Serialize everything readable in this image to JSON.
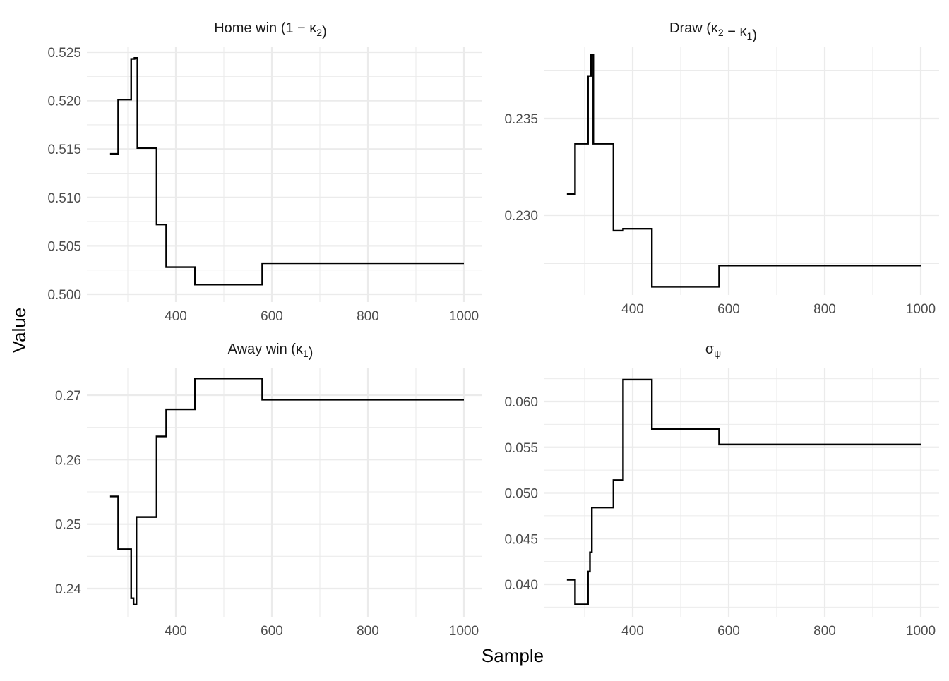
{
  "chart_data": {
    "type": "line",
    "layout": "facet_wrap 2x2, free y scales",
    "xlabel": "Sample",
    "ylabel": "Value",
    "grid": true,
    "legend": "none",
    "panels": [
      {
        "id": "home",
        "title": "Home win (1 − κ₂)",
        "title_parts": {
          "main": "Home win (1 − κ",
          "sub": "2",
          "tail": ")"
        },
        "step": true,
        "xlim": [
          245,
          1040
        ],
        "ylim": [
          0.4992,
          0.5255
        ],
        "x_ticks": [
          400,
          600,
          800,
          1000
        ],
        "x_minor": [
          300,
          500,
          700,
          900
        ],
        "y_ticks": [
          0.5,
          0.505,
          0.51,
          0.515,
          0.52,
          0.525
        ],
        "y_tick_labels": [
          "0.500",
          "0.505",
          "0.510",
          "0.515",
          "0.520",
          "0.525"
        ],
        "y_minor": [
          0.5025,
          0.5075,
          0.5125,
          0.5175,
          0.5225
        ],
        "x": [
          263,
          280,
          307,
          314,
          320,
          360,
          380,
          440,
          580,
          1000
        ],
        "values": [
          0.5145,
          0.5201,
          0.5243,
          0.5244,
          0.5151,
          0.5072,
          0.5028,
          0.501,
          0.5032,
          0.5032
        ]
      },
      {
        "id": "draw",
        "title": "Draw (κ₂ − κ₁)",
        "title_parts": {
          "main": "Draw (κ",
          "sub": "2",
          "mid": " − κ",
          "sub2": "1",
          "tail": ")"
        },
        "step": true,
        "xlim": [
          245,
          1040
        ],
        "ylim": [
          0.2258,
          0.2392
        ],
        "x_ticks": [
          400,
          600,
          800,
          1000
        ],
        "x_minor": [
          300,
          500,
          700,
          900
        ],
        "y_ticks": [
          0.23,
          0.235
        ],
        "y_tick_labels": [
          "0.230",
          "0.235"
        ],
        "y_minor": [
          0.2275,
          0.2325,
          0.2375
        ],
        "x": [
          263,
          280,
          307,
          313,
          318,
          360,
          380,
          440,
          580,
          1000
        ],
        "values": [
          0.2311,
          0.2337,
          0.2372,
          0.2383,
          0.2337,
          0.2292,
          0.2293,
          0.2263,
          0.2274,
          0.2274
        ]
      },
      {
        "id": "away",
        "title": "Away win (κ₁)",
        "title_parts": {
          "main": "Away win (κ",
          "sub": "1",
          "tail": ")"
        },
        "step": true,
        "xlim": [
          245,
          1040
        ],
        "ylim": [
          0.2358,
          0.2744
        ],
        "x_ticks": [
          400,
          600,
          800,
          1000
        ],
        "x_minor": [
          300,
          500,
          700,
          900
        ],
        "y_ticks": [
          0.24,
          0.25,
          0.26,
          0.27
        ],
        "y_tick_labels": [
          "0.24",
          "0.25",
          "0.26",
          "0.27"
        ],
        "y_minor": [
          0.245,
          0.255,
          0.265
        ],
        "x": [
          263,
          280,
          307,
          312,
          318,
          360,
          380,
          440,
          580,
          1000
        ],
        "values": [
          0.2543,
          0.2461,
          0.2385,
          0.2375,
          0.2511,
          0.2636,
          0.2678,
          0.2726,
          0.2693,
          0.2693
        ]
      },
      {
        "id": "sigma",
        "title": "σψ",
        "title_parts": {
          "main": "σ",
          "sub": "ψ",
          "tail": ""
        },
        "step": true,
        "xlim": [
          245,
          1040
        ],
        "ylim": [
          0.0364,
          0.0643
        ],
        "x_ticks": [
          400,
          600,
          800,
          1000
        ],
        "x_minor": [
          300,
          500,
          700,
          900
        ],
        "y_ticks": [
          0.04,
          0.045,
          0.05,
          0.055,
          0.06
        ],
        "y_tick_labels": [
          "0.040",
          "0.045",
          "0.050",
          "0.055",
          "0.060"
        ],
        "y_minor": [
          0.0375,
          0.0425,
          0.0475,
          0.0525,
          0.0575,
          0.0625
        ],
        "x": [
          263,
          280,
          307,
          311,
          315,
          360,
          380,
          440,
          580,
          1000
        ],
        "values": [
          0.0405,
          0.0378,
          0.0414,
          0.0435,
          0.0484,
          0.0514,
          0.0624,
          0.057,
          0.0553,
          0.0553
        ]
      }
    ]
  },
  "axes": {
    "xlabel": "Sample",
    "ylabel": "Value"
  },
  "style": {
    "line_color": "#000000",
    "grid_color": "#ebebeb",
    "tick_color": "#4d4d4d",
    "background": "#ffffff"
  }
}
